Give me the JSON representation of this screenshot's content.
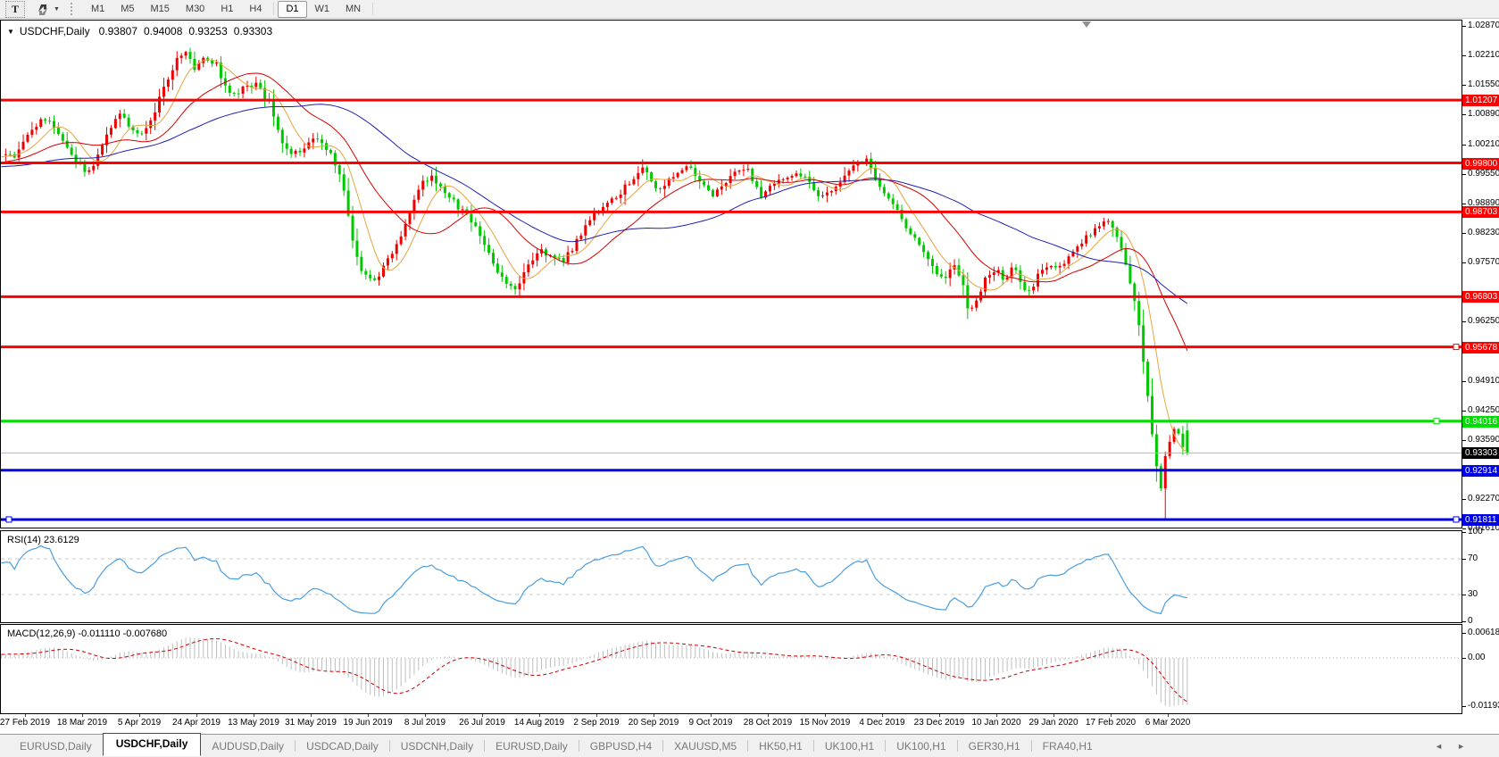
{
  "toolbar": {
    "text_tool_label": "T",
    "arrows_dropdown_caret": "▼",
    "timeframes": [
      "M1",
      "M5",
      "M15",
      "M30",
      "H1",
      "H4",
      "D1",
      "W1",
      "MN"
    ],
    "active_timeframe": "D1"
  },
  "chart": {
    "title_symbol": "USDCHF,Daily",
    "ohlc": {
      "open": "0.93807",
      "high": "0.94008",
      "low": "0.93253",
      "close": "0.93303"
    },
    "axis_ticks": [
      "1.02870",
      "1.02210",
      "1.01550",
      "1.00890",
      "1.00210",
      "0.99550",
      "0.98890",
      "0.98230",
      "0.97570",
      "0.96250",
      "0.94910",
      "0.94250",
      "0.93590",
      "0.92270",
      "0.91610"
    ],
    "current_price": {
      "value": "0.93303",
      "label_bg": "#000000",
      "line_color": "#b4b4b4"
    }
  },
  "indicators": {
    "rsi": {
      "label": "RSI(14) 23.6129",
      "value": "23.6129",
      "axis_labels": [
        "100",
        "70",
        "30",
        "0"
      ],
      "levels": [
        70,
        30
      ],
      "line_color": "#4a9ede",
      "level_color": "#c8c8c8"
    },
    "macd": {
      "label": "MACD(12,26,9) -0.011110 -0.007680",
      "main_value": "-0.011110",
      "signal_value": "-0.007680",
      "axis_labels": [
        "0.006186",
        "0.00",
        "-0.01193"
      ],
      "histogram_color": "#bebebe",
      "signal_color": "#cc0000"
    }
  },
  "dates": [
    "27 Feb 2019",
    "18 Mar 2019",
    "5 Apr 2019",
    "24 Apr 2019",
    "13 May 2019",
    "31 May 2019",
    "19 Jun 2019",
    "8 Jul 2019",
    "26 Jul 2019",
    "14 Aug 2019",
    "2 Sep 2019",
    "20 Sep 2019",
    "9 Oct 2019",
    "28 Oct 2019",
    "15 Nov 2019",
    "4 Dec 2019",
    "23 Dec 2019",
    "10 Jan 2020",
    "29 Jan 2020",
    "17 Feb 2020",
    "6 Mar 2020"
  ],
  "tabs": {
    "items": [
      {
        "label": "EURUSD,Daily",
        "active": false
      },
      {
        "label": "USDCHF,Daily",
        "active": true
      },
      {
        "label": "AUDUSD,Daily",
        "active": false
      },
      {
        "label": "USDCAD,Daily",
        "active": false
      },
      {
        "label": "USDCNH,Daily",
        "active": false
      },
      {
        "label": "EURUSD,Daily",
        "active": false
      },
      {
        "label": "GBPUSD,H4",
        "active": false
      },
      {
        "label": "XAUUSD,M5",
        "active": false
      },
      {
        "label": "HK50,H1",
        "active": false
      },
      {
        "label": "UK100,H1",
        "active": false
      },
      {
        "label": "UK100,H1",
        "active": false
      },
      {
        "label": "GER30,H1",
        "active": false
      },
      {
        "label": "FRA40,H1",
        "active": false
      }
    ],
    "scroll_left": "◄",
    "scroll_right": "►"
  },
  "chart_data": {
    "type": "candlestick",
    "symbol": "USDCHF",
    "timeframe": "Daily",
    "price_axis_range": [
      0.9161,
      1.0287
    ],
    "bull_color": "#ee0000",
    "bear_color": "#00c800",
    "last_candle": {
      "open": 0.93807,
      "high": 0.94008,
      "low": 0.93253,
      "close": 0.93303
    },
    "forced_low": 0.91811,
    "hlines": [
      {
        "price": 1.01207,
        "label": "1.01207",
        "color": "#ff0000",
        "handles": []
      },
      {
        "price": 0.998,
        "label": "0.99800",
        "color": "#ff0000",
        "handles": []
      },
      {
        "price": 0.98703,
        "label": "0.98703",
        "color": "#ff0000",
        "handles": []
      },
      {
        "price": 0.96803,
        "label": "0.96803",
        "color": "#ff0000",
        "handles": []
      },
      {
        "price": 0.95678,
        "label": "0.95678",
        "color": "#ff0000",
        "handles": [
          1630
        ]
      },
      {
        "price": 0.94016,
        "label": "0.94016",
        "color": "#00dd00",
        "handles": [
          1608
        ]
      },
      {
        "price": 0.92914,
        "label": "0.92914",
        "color": "#0000e6",
        "handles": []
      },
      {
        "price": 0.91811,
        "label": "0.91811",
        "color": "#0000e6",
        "handles": [
          9,
          1630
        ]
      }
    ],
    "moving_averages": [
      {
        "period": 8,
        "color": "#e8a33d"
      },
      {
        "period": 21,
        "color": "#d40000"
      },
      {
        "period": 50,
        "color": "#2020b0"
      }
    ],
    "price_path": [
      [
        -280,
        0.993
      ],
      [
        -200,
        0.999
      ],
      [
        -120,
        0.994
      ],
      [
        -60,
        0.998
      ],
      [
        -20,
        0.999
      ],
      [
        4,
        1.0005
      ],
      [
        14,
        0.9988
      ],
      [
        26,
        1.0025
      ],
      [
        40,
        1.0068
      ],
      [
        52,
        1.0082
      ],
      [
        64,
        1.0045
      ],
      [
        76,
        1.0008
      ],
      [
        88,
        0.9978
      ],
      [
        98,
        0.9955
      ],
      [
        110,
        1.0
      ],
      [
        122,
        1.0058
      ],
      [
        134,
        1.009
      ],
      [
        146,
        1.0058
      ],
      [
        158,
        1.0042
      ],
      [
        170,
        1.0085
      ],
      [
        183,
        1.015
      ],
      [
        196,
        1.021
      ],
      [
        208,
        1.0228
      ],
      [
        218,
        1.019
      ],
      [
        228,
        1.0218
      ],
      [
        240,
        1.0205
      ],
      [
        252,
        1.015
      ],
      [
        262,
        1.0132
      ],
      [
        274,
        1.0152
      ],
      [
        286,
        1.0158
      ],
      [
        300,
        1.0115
      ],
      [
        314,
        1.0032
      ],
      [
        328,
        1.0
      ],
      [
        342,
        1.0018
      ],
      [
        356,
        1.0038
      ],
      [
        370,
        0.9995
      ],
      [
        382,
        0.995
      ],
      [
        394,
        0.98
      ],
      [
        406,
        0.9732
      ],
      [
        418,
        0.971
      ],
      [
        430,
        0.975
      ],
      [
        444,
        0.98
      ],
      [
        458,
        0.987
      ],
      [
        470,
        0.9935
      ],
      [
        482,
        0.995
      ],
      [
        494,
        0.9918
      ],
      [
        506,
        0.9895
      ],
      [
        518,
        0.9868
      ],
      [
        530,
        0.9845
      ],
      [
        542,
        0.979
      ],
      [
        554,
        0.9748
      ],
      [
        566,
        0.9712
      ],
      [
        578,
        0.9693
      ],
      [
        590,
        0.9748
      ],
      [
        602,
        0.9788
      ],
      [
        616,
        0.9768
      ],
      [
        630,
        0.976
      ],
      [
        644,
        0.98
      ],
      [
        658,
        0.9852
      ],
      [
        672,
        0.9878
      ],
      [
        686,
        0.9898
      ],
      [
        700,
        0.9928
      ],
      [
        712,
        0.995
      ],
      [
        722,
        0.9972
      ],
      [
        734,
        0.9922
      ],
      [
        746,
        0.9935
      ],
      [
        758,
        0.9958
      ],
      [
        770,
        0.9978
      ],
      [
        784,
        0.9935
      ],
      [
        796,
        0.9905
      ],
      [
        810,
        0.9938
      ],
      [
        824,
        0.9958
      ],
      [
        836,
        0.9968
      ],
      [
        850,
        0.9905
      ],
      [
        864,
        0.9928
      ],
      [
        878,
        0.9948
      ],
      [
        892,
        0.9958
      ],
      [
        906,
        0.9938
      ],
      [
        918,
        0.9905
      ],
      [
        930,
        0.9918
      ],
      [
        944,
        0.9948
      ],
      [
        956,
        0.9978
      ],
      [
        968,
        0.999
      ],
      [
        980,
        0.9945
      ],
      [
        992,
        0.9905
      ],
      [
        1006,
        0.9868
      ],
      [
        1020,
        0.9818
      ],
      [
        1032,
        0.978
      ],
      [
        1044,
        0.9748
      ],
      [
        1056,
        0.9718
      ],
      [
        1066,
        0.9752
      ],
      [
        1076,
        0.972
      ],
      [
        1084,
        0.9648
      ],
      [
        1094,
        0.9682
      ],
      [
        1104,
        0.9725
      ],
      [
        1114,
        0.9742
      ],
      [
        1124,
        0.972
      ],
      [
        1134,
        0.9748
      ],
      [
        1144,
        0.97
      ],
      [
        1154,
        0.9692
      ],
      [
        1164,
        0.9738
      ],
      [
        1174,
        0.9752
      ],
      [
        1184,
        0.9745
      ],
      [
        1194,
        0.9762
      ],
      [
        1206,
        0.9792
      ],
      [
        1218,
        0.9818
      ],
      [
        1230,
        0.9842
      ],
      [
        1240,
        0.9848
      ],
      [
        1249,
        0.9815
      ],
      [
        1257,
        0.9775
      ],
      [
        1265,
        0.9715
      ],
      [
        1273,
        0.9635
      ],
      [
        1281,
        0.952
      ],
      [
        1288,
        0.94
      ],
      [
        1294,
        0.9305
      ],
      [
        1299,
        0.9245
      ],
      [
        1305,
        0.9338
      ],
      [
        1311,
        0.9372
      ],
      [
        1317,
        0.9392
      ],
      [
        1323,
        0.9352
      ],
      [
        1329,
        0.933
      ]
    ]
  }
}
